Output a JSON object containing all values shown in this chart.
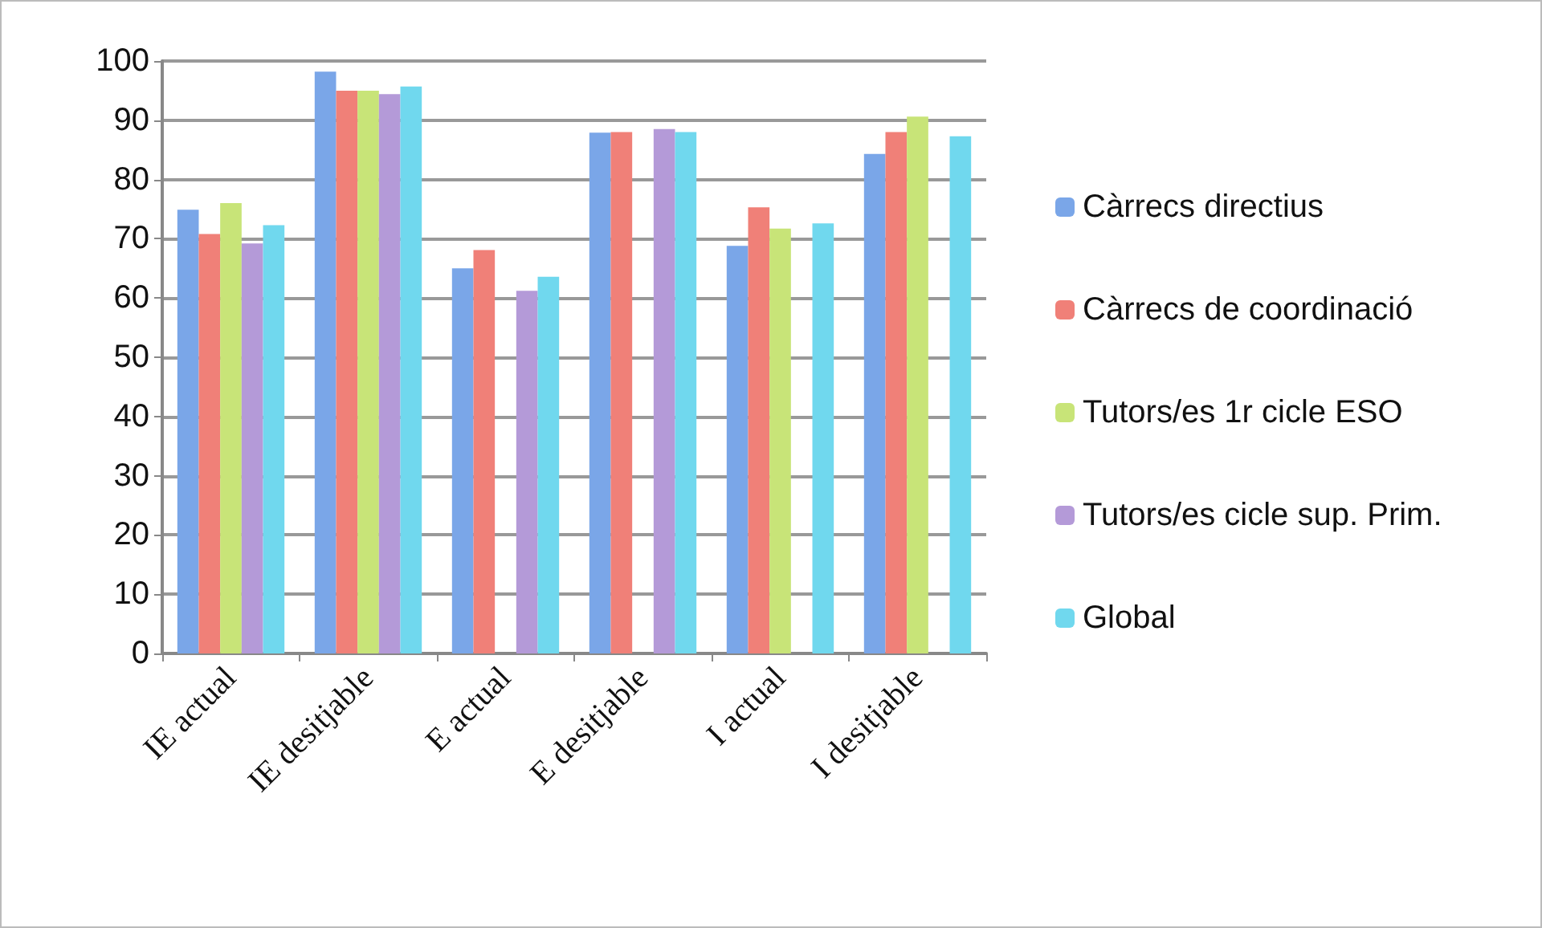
{
  "chart_data": {
    "type": "bar",
    "categories": [
      "IE actual",
      "IE desitjable",
      "E actual",
      "E desitjable",
      "I actual",
      "I desitjable"
    ],
    "series": [
      {
        "name": "Càrrecs directius",
        "color": "#7aa6e8",
        "values": [
          74.9,
          98.2,
          65,
          87.9,
          68.8,
          84.3
        ]
      },
      {
        "name": "Càrrecs de coordinació",
        "color": "#f08078",
        "values": [
          70.8,
          95,
          68.1,
          88,
          75.3,
          88
        ]
      },
      {
        "name": "Tutors/es 1r cicle ESO",
        "color": "#c8e478",
        "values": [
          76,
          95,
          null,
          null,
          71.7,
          90.6
        ]
      },
      {
        "name": "Tutors/es cicle sup. Prim.",
        "color": "#b49ad8",
        "values": [
          69.2,
          94.4,
          61.2,
          88.5,
          null,
          null
        ]
      },
      {
        "name": "Global",
        "color": "#70d8ee",
        "values": [
          72.3,
          95.7,
          63.6,
          88,
          72.6,
          87.3
        ]
      }
    ],
    "ylim": [
      0,
      100
    ],
    "yticks": [
      0,
      10,
      20,
      30,
      40,
      50,
      60,
      70,
      80,
      90,
      100
    ],
    "grid": "y",
    "legend": "right"
  }
}
